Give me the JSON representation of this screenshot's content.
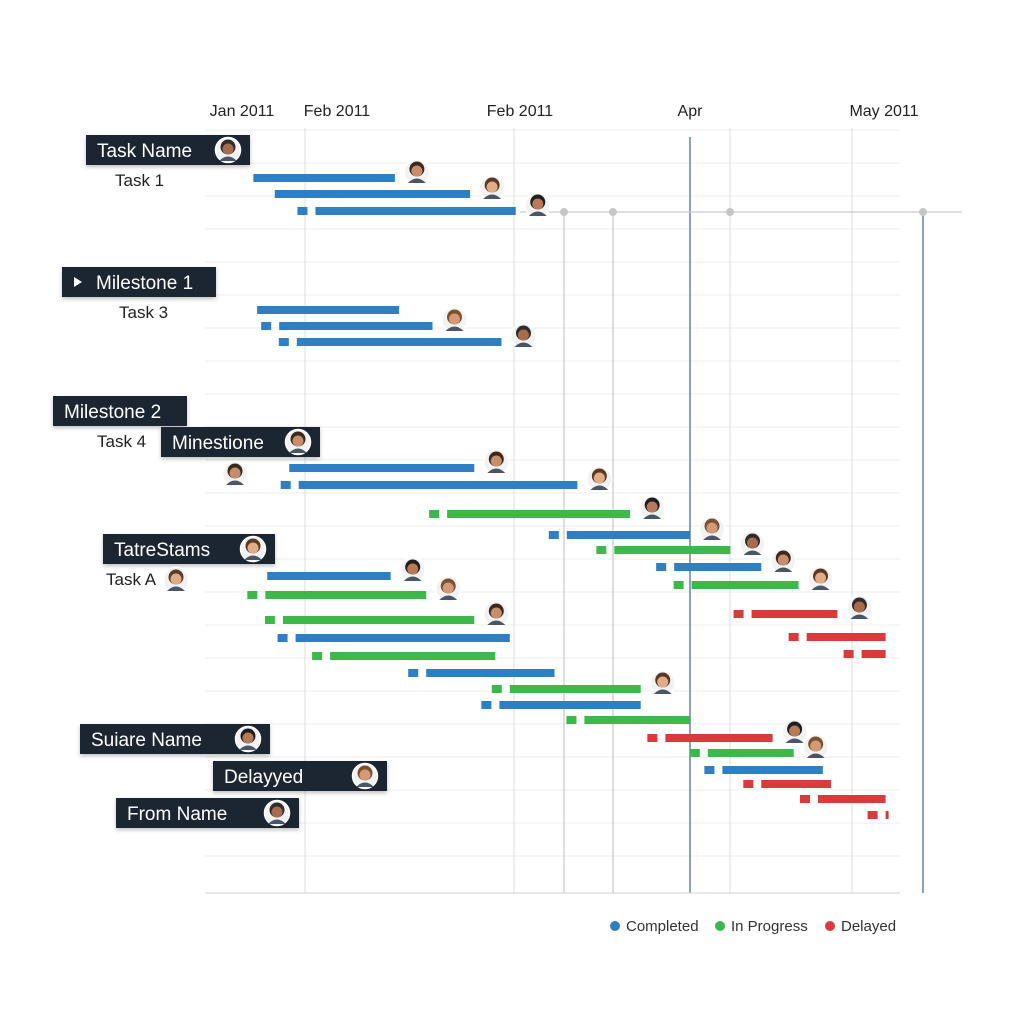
{
  "chart_data": {
    "type": "gantt",
    "x_axis": {
      "tick_labels": [
        "Jan 2011",
        "Feb 2011",
        "Feb 2011",
        "Apr",
        "May 2011"
      ]
    },
    "colors": {
      "Completed": "#2f7fc4",
      "In Progress": "#3cb94a",
      "Delayed": "#d93a3a"
    },
    "legend": {
      "placement": "bottom-right",
      "entries": [
        "Completed",
        "In Progress",
        "Delayed"
      ]
    },
    "group_labels": [
      {
        "text": "Task Name",
        "avatar": true
      },
      {
        "text": "Milestone 1",
        "play_icon": true
      },
      {
        "text": "Milestone 2"
      },
      {
        "text": "Minestione",
        "avatar": true
      },
      {
        "text": "TatreStams",
        "avatar": true
      },
      {
        "text": "Suiare Name",
        "avatar": true
      },
      {
        "text": "Delayyed",
        "avatar": true
      },
      {
        "text": "From Name",
        "avatar": true
      }
    ],
    "task_labels": [
      "Task 1",
      "Task 3",
      "Task 4",
      "Task A"
    ],
    "tasks": [
      {
        "status": "Completed",
        "marker": false,
        "start": 0.18,
        "end": 1.43,
        "avatar": true
      },
      {
        "status": "Completed",
        "marker": false,
        "start": 0.52,
        "end": 1.79,
        "avatar": true
      },
      {
        "status": "Completed",
        "marker": true,
        "start": 1.05,
        "end": 2.01,
        "avatar": true
      },
      {
        "status": "Completed",
        "marker": false,
        "start": 0.24,
        "end": 1.45,
        "avatar": false
      },
      {
        "status": "Completed",
        "marker": true,
        "start": 0.59,
        "end": 1.61,
        "avatar": true
      },
      {
        "status": "Completed",
        "marker": true,
        "start": 0.87,
        "end": 1.94,
        "avatar": true
      },
      {
        "status": "Completed",
        "marker": false,
        "start": 0.75,
        "end": 1.81,
        "avatar": true
      },
      {
        "status": "Completed",
        "marker": true,
        "start": 0.9,
        "end": 2.36,
        "avatar": true
      },
      {
        "status": "In Progress",
        "marker": true,
        "start": 1.68,
        "end": 2.66,
        "avatar": true
      },
      {
        "status": "Completed",
        "marker": true,
        "start": 2.3,
        "end": 3.0,
        "avatar": true
      },
      {
        "status": "In Progress",
        "marker": true,
        "start": 2.57,
        "end": 3.25,
        "avatar": true
      },
      {
        "status": "Completed",
        "marker": true,
        "start": 2.91,
        "end": 3.44,
        "avatar": true
      },
      {
        "status": "In Progress",
        "marker": true,
        "start": 3.01,
        "end": 3.67,
        "avatar": true
      },
      {
        "status": "Completed",
        "marker": false,
        "start": 0.4,
        "end": 1.41,
        "avatar": true
      },
      {
        "status": "In Progress",
        "marker": true,
        "start": 0.37,
        "end": 1.58,
        "avatar": true
      },
      {
        "status": "Delayed",
        "marker": true,
        "start": 3.38,
        "end": 3.91,
        "avatar": true
      },
      {
        "status": "In Progress",
        "marker": true,
        "start": 0.65,
        "end": 1.81,
        "avatar": true
      },
      {
        "status": "Delayed",
        "marker": true,
        "start": 3.72,
        "end": 4.21,
        "avatar": false
      },
      {
        "status": "Completed",
        "marker": true,
        "start": 0.85,
        "end": 1.98,
        "avatar": false
      },
      {
        "status": "Delayed",
        "marker": true,
        "start": 4.06,
        "end": 4.21,
        "avatar": false
      },
      {
        "status": "In Progress",
        "marker": true,
        "start": 1.12,
        "end": 1.91,
        "avatar": false
      },
      {
        "status": "Completed",
        "marker": true,
        "start": 1.58,
        "end": 2.23,
        "avatar": false
      },
      {
        "status": "In Progress",
        "marker": true,
        "start": 1.98,
        "end": 2.72,
        "avatar": true
      },
      {
        "status": "Completed",
        "marker": true,
        "start": 1.93,
        "end": 2.72,
        "avatar": false
      },
      {
        "status": "In Progress",
        "marker": true,
        "start": 2.4,
        "end": 3.0,
        "avatar": false
      },
      {
        "status": "Delayed",
        "marker": true,
        "start": 2.86,
        "end": 3.51,
        "avatar": true
      },
      {
        "status": "In Progress",
        "marker": true,
        "start": 3.11,
        "end": 3.64,
        "avatar": true
      },
      {
        "status": "Completed",
        "marker": true,
        "start": 3.2,
        "end": 3.82,
        "avatar": false
      },
      {
        "status": "Delayed",
        "marker": true,
        "start": 3.44,
        "end": 3.87,
        "avatar": false
      },
      {
        "status": "Delayed",
        "marker": true,
        "start": 3.79,
        "end": 4.21,
        "avatar": false
      },
      {
        "status": "Delayed",
        "marker": true,
        "start": 4.21,
        "end": 4.21,
        "avatar": false
      }
    ]
  }
}
